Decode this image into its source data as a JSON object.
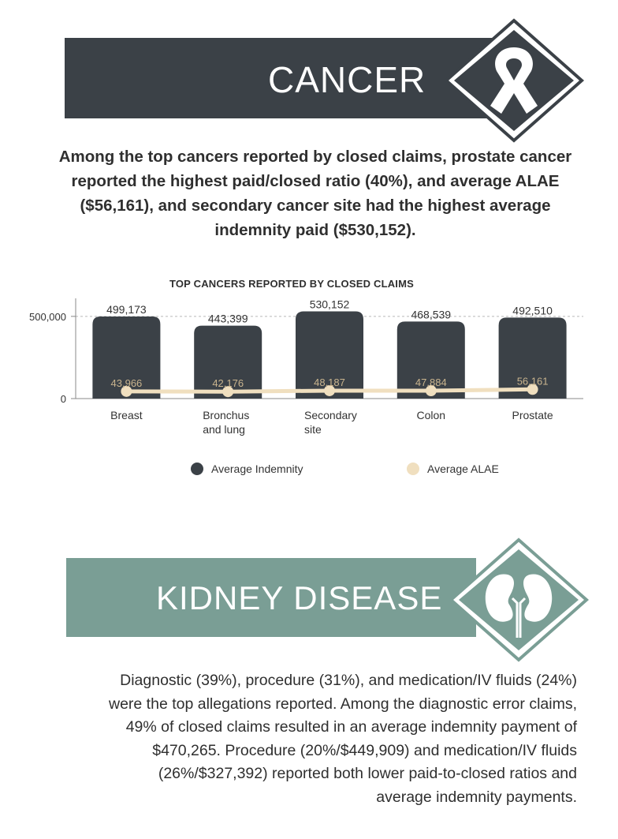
{
  "cancer_section": {
    "title": "CANCER",
    "icon": "ribbon-icon",
    "color": "#3b4147",
    "summary_lines": [
      "Among the top cancers reported by closed claims, prostate cancer",
      "reported the highest paid/closed ratio (40%),  and average ALAE",
      "($56,161), and secondary cancer site had the highest average",
      " indemnity paid ($530,152)."
    ]
  },
  "chart_data": {
    "type": "bar",
    "title": "TOP CANCERS REPORTED BY CLOSED CLAIMS",
    "categories": [
      [
        "Breast"
      ],
      [
        "Bronchus",
        "and lung"
      ],
      [
        "Secondary",
        "site"
      ],
      [
        "Colon"
      ],
      [
        "Prostate"
      ]
    ],
    "series": [
      {
        "name": "Average Indemnity",
        "type": "bar",
        "color": "#3b4147",
        "values": [
          499173,
          443399,
          530152,
          468539,
          492510
        ],
        "labels": [
          "499,173",
          "443,399",
          "530,152",
          "468,539",
          "492,510"
        ]
      },
      {
        "name": "Average ALAE",
        "type": "line",
        "color": "#f0dfbf",
        "values": [
          43966,
          42176,
          48187,
          47884,
          56161
        ],
        "labels": [
          "43,966",
          "42,176",
          "48,187",
          "47,884",
          "56,161"
        ]
      }
    ],
    "yticks": [
      0,
      500000
    ],
    "ytick_labels": [
      "0",
      "500,000"
    ],
    "ylim": [
      0,
      600000
    ],
    "grid": "dashed-horizontal",
    "legend_position": "bottom"
  },
  "kidney_section": {
    "title": "KIDNEY DISEASE",
    "icon": "kidney-icon",
    "color": "#7a9e95",
    "summary_lines": [
      "Diagnostic (39%), procedure (31%), and medication/IV fluids (24%)",
      "were the top allegations reported. Among the diagnostic error claims,",
      "49% of closed claims resulted in an average indemnity payment of",
      "$470,265. Procedure (20%/$449,909) and medication/IV fluids",
      "(26%/$327,392) reported both lower paid-to-closed ratios and",
      "average indemnity payments."
    ]
  }
}
